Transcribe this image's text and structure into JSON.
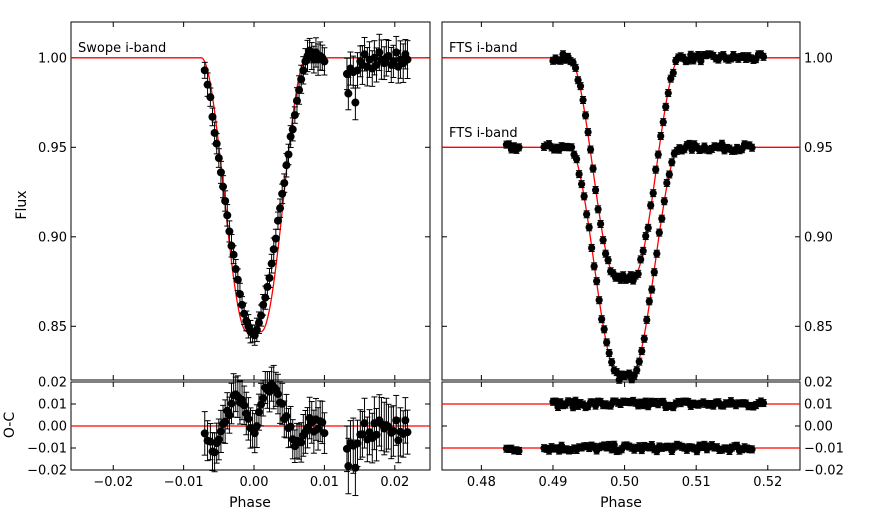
{
  "colors": {
    "model": "#ff0000",
    "data": "#000000",
    "axes": "#000000"
  },
  "chart_data": [
    {
      "type": "scatter",
      "panel": "left-top",
      "label": "Swope i-band",
      "ylabel": "Flux",
      "xlim": [
        -0.026,
        0.025
      ],
      "ylim": [
        0.82,
        1.02
      ],
      "xticks": [
        -0.02,
        -0.01,
        0.0,
        0.01,
        0.02
      ],
      "yticks": [
        0.85,
        0.9,
        0.95,
        1.0
      ],
      "ytick_labels": [
        "0.85",
        "0.90",
        "0.95",
        "1.00"
      ],
      "model": {
        "depth": 0.153,
        "t1": 0.0075,
        "t2": 0.001,
        "offset": 0.0
      },
      "series": [
        {
          "name": "Swope i-band",
          "x": [
            -0.007,
            -0.0066,
            -0.0062,
            -0.0059,
            -0.0056,
            -0.0053,
            -0.005,
            -0.0047,
            -0.0044,
            -0.0041,
            -0.0038,
            -0.0035,
            -0.0032,
            -0.0029,
            -0.0026,
            -0.0023,
            -0.002,
            -0.0017,
            -0.0014,
            -0.0011,
            -0.0008,
            -0.0005,
            -0.0002,
            0.0001,
            0.0004,
            0.0007,
            0.001,
            0.0013,
            0.0016,
            0.0019,
            0.0022,
            0.0025,
            0.0028,
            0.0031,
            0.0034,
            0.0037,
            0.004,
            0.0043,
            0.0046,
            0.0049,
            0.0052,
            0.0055,
            0.0058,
            0.0061,
            0.0064,
            0.0067,
            0.007,
            0.0073,
            0.0076,
            0.0079,
            0.0082,
            0.0085,
            0.0088,
            0.0091,
            0.0094,
            0.0097,
            0.01,
            0.0132,
            0.0134,
            0.0137,
            0.0141,
            0.0144,
            0.0147,
            0.0151,
            0.0154,
            0.0157,
            0.0161,
            0.0164,
            0.0168,
            0.0171,
            0.0174,
            0.0178,
            0.0181,
            0.0185,
            0.0188,
            0.0191,
            0.0195,
            0.0198,
            0.0202,
            0.0205,
            0.0208,
            0.0212,
            0.0215,
            0.0218
          ],
          "y": [
            0.993,
            0.985,
            0.978,
            0.967,
            0.958,
            0.952,
            0.944,
            0.936,
            0.928,
            0.92,
            0.912,
            0.903,
            0.895,
            0.89,
            0.882,
            0.876,
            0.868,
            0.862,
            0.857,
            0.853,
            0.85,
            0.847,
            0.846,
            0.845,
            0.848,
            0.852,
            0.856,
            0.862,
            0.866,
            0.872,
            0.877,
            0.885,
            0.893,
            0.899,
            0.909,
            0.916,
            0.924,
            0.93,
            0.94,
            0.946,
            0.956,
            0.96,
            0.968,
            0.976,
            0.982,
            0.988,
            0.993,
            0.998,
            1.001,
            1.004,
            1.001,
            0.999,
            1.003,
            0.999,
            1.001,
            1.0,
            0.998,
            0.991,
            0.98,
            0.994,
            0.992,
            0.975,
            0.993,
            0.998,
            0.996,
            1.002,
            0.995,
            0.999,
            0.994,
            1.0,
            0.996,
            1.003,
            0.999,
            0.997,
            1.0,
            1.001,
            0.996,
            0.998,
            1.003,
            0.995,
            0.999,
            0.997,
            1.002,
            0.999
          ]
        }
      ]
    },
    {
      "type": "scatter",
      "panel": "right-top",
      "labels": [
        "FTS i-band",
        "FTS i-band"
      ],
      "xlim": [
        0.4745,
        0.5245
      ],
      "ylim": [
        0.82,
        1.02
      ],
      "yticks": [
        0.85,
        0.9,
        0.95,
        1.0
      ],
      "ytick_labels": [
        "0.85",
        "0.90",
        "0.95",
        "1.00"
      ],
      "series": [
        {
          "name": "FTS i-band (upper)",
          "offset": 0.0,
          "xrange": [
            0.49,
            0.5195
          ],
          "model": {
            "depth": 0.123,
            "t1": 0.0078,
            "t2": 0.0011
          }
        },
        {
          "name": "FTS i-band (lower)",
          "offset": -0.05,
          "xrange": [
            0.4835,
            0.518
          ],
          "model": {
            "depth": 0.128,
            "t1": 0.0078,
            "t2": 0.0008
          }
        }
      ]
    },
    {
      "type": "scatter",
      "panel": "left-bottom",
      "xlabel": "Phase",
      "ylabel": "O-C",
      "xlim": [
        -0.026,
        0.025
      ],
      "ylim": [
        -0.02,
        0.02
      ],
      "xticks": [
        -0.02,
        -0.01,
        0.0,
        0.01,
        0.02
      ],
      "xtick_labels": [
        "−0.02",
        "−0.01",
        "0.00",
        "0.01",
        "0.02"
      ],
      "yticks": [
        -0.02,
        -0.01,
        0.0,
        0.01,
        0.02
      ],
      "ytick_labels": [
        "−0.02",
        "−0.01",
        "0.00",
        "0.01",
        "0.02"
      ],
      "zero_line": 0.0
    },
    {
      "type": "scatter",
      "panel": "right-bottom",
      "xlabel": "Phase",
      "xlim": [
        0.4745,
        0.5245
      ],
      "ylim": [
        -0.02,
        0.02
      ],
      "xticks": [
        0.48,
        0.49,
        0.5,
        0.51,
        0.52
      ],
      "xtick_labels": [
        "0.48",
        "0.49",
        "0.50",
        "0.51",
        "0.52"
      ],
      "yticks": [
        -0.02,
        -0.01,
        0.0,
        0.01,
        0.02
      ],
      "ytick_labels": [
        "−0.02",
        "−0.01",
        "0.00",
        "0.01",
        "0.02"
      ],
      "offset_lines": [
        0.01,
        -0.01
      ]
    }
  ]
}
